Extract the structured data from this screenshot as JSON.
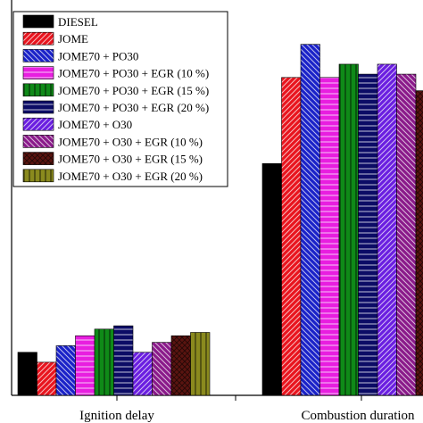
{
  "chart_data": {
    "type": "bar",
    "categories": [
      "Ignition delay",
      "Combustion duration"
    ],
    "series": [
      {
        "name": "DIESEL",
        "values": [
          13,
          70
        ],
        "color": "#000000",
        "pattern": "solid"
      },
      {
        "name": "JOME",
        "values": [
          10,
          96
        ],
        "color": "#e8141e",
        "pattern": "diag-up"
      },
      {
        "name": "JOME70 + PO30",
        "values": [
          15,
          106
        ],
        "color": "#1a22c8",
        "pattern": "diag-down"
      },
      {
        "name": "JOME70 + PO30 + EGR (10 %)",
        "values": [
          18,
          96
        ],
        "color": "#e81ee0",
        "pattern": "horizontal"
      },
      {
        "name": "JOME70 + PO30 + EGR (15 %)",
        "values": [
          20,
          100
        ],
        "color": "#0f8a18",
        "pattern": "vertical"
      },
      {
        "name": "JOME70 + PO30 + EGR (20 %)",
        "values": [
          21,
          97
        ],
        "color": "#0c0c66",
        "pattern": "horizontal"
      },
      {
        "name": "JOME70 + O30",
        "values": [
          13,
          100
        ],
        "color": "#6a1ee0",
        "pattern": "diag-up"
      },
      {
        "name": "JOME70 + O30 + EGR (10 %)",
        "values": [
          16,
          97
        ],
        "color": "#8a1a8a",
        "pattern": "diag-down"
      },
      {
        "name": "JOME70 + O30 + EGR (15 %)",
        "values": [
          18,
          92
        ],
        "color": "#5a1410",
        "pattern": "crosshatch"
      },
      {
        "name": "JOME70 + O30 + EGR (20 %)",
        "values": [
          19,
          83
        ],
        "color": "#8a8a1e",
        "pattern": "vertical"
      }
    ],
    "ylim": [
      0,
      114
    ],
    "legend_position": "top-left",
    "grid": false
  }
}
